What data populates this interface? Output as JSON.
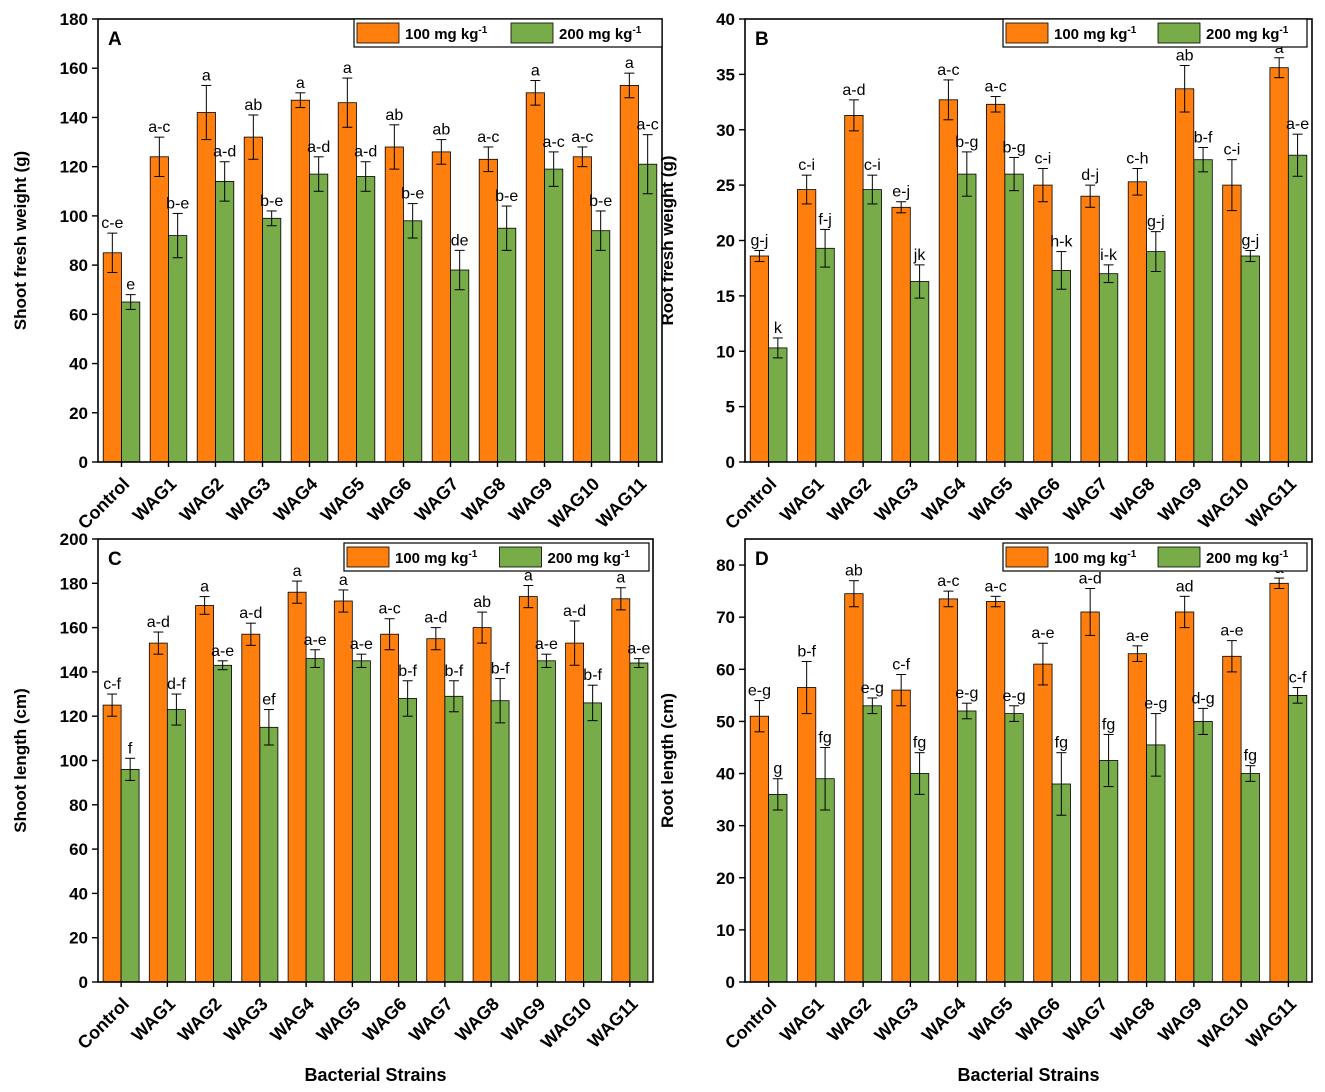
{
  "colors": {
    "series1": "#ff7f0e",
    "series2": "#77ac48",
    "axis": "#000000"
  },
  "xlabel": "Bacterial Strains",
  "legend": {
    "series1": {
      "main": "100 mg kg",
      "sup": "-1"
    },
    "series2": {
      "main": "200 mg kg",
      "sup": "-1"
    }
  },
  "chart_data": [
    {
      "type": "bar",
      "panel": "A",
      "title": "",
      "xlabel": "",
      "ylabel": "Shoot fresh weight (g)",
      "ylim": [
        0,
        180
      ],
      "yticks": [
        0,
        20,
        40,
        60,
        80,
        100,
        120,
        140,
        160,
        180
      ],
      "legend_position": "top-right",
      "categories": [
        "Control",
        "WAG1",
        "WAG2",
        "WAG3",
        "WAG4",
        "WAG5",
        "WAG6",
        "WAG7",
        "WAG8",
        "WAG9",
        "WAG10",
        "WAG11"
      ],
      "series": [
        {
          "name": "100 mg kg-1",
          "values": [
            85,
            124,
            142,
            132,
            147,
            146,
            128,
            126,
            123,
            150,
            124,
            153
          ],
          "errors": [
            8,
            8,
            11,
            9,
            3,
            10,
            9,
            5,
            5,
            5,
            4,
            5
          ],
          "labels": [
            "c-e",
            "a-c",
            "a",
            "ab",
            "a",
            "a",
            "ab",
            "ab",
            "a-c",
            "a",
            "a-c",
            "a"
          ]
        },
        {
          "name": "200 mg kg-1",
          "values": [
            65,
            92,
            114,
            99,
            117,
            116,
            98,
            78,
            95,
            119,
            94,
            121
          ],
          "errors": [
            3,
            9,
            8,
            3,
            7,
            6,
            7,
            8,
            9,
            7,
            8,
            12
          ],
          "labels": [
            "e",
            "b-e",
            "a-d",
            "b-e",
            "a-d",
            "a-d",
            "b-e",
            "de",
            "b-e",
            "a-c",
            "b-e",
            "a-c"
          ]
        }
      ]
    },
    {
      "type": "bar",
      "panel": "B",
      "title": "",
      "xlabel": "",
      "ylabel": "Root fresh weight (g)",
      "ylim": [
        0,
        40
      ],
      "yticks": [
        0,
        5,
        10,
        15,
        20,
        25,
        30,
        35,
        40
      ],
      "legend_position": "top-right",
      "categories": [
        "Control",
        "WAG1",
        "WAG2",
        "WAG3",
        "WAG4",
        "WAG5",
        "WAG6",
        "WAG7",
        "WAG8",
        "WAG9",
        "WAG10",
        "WAG11"
      ],
      "series": [
        {
          "name": "100 mg kg-1",
          "values": [
            18.6,
            24.6,
            31.3,
            23.0,
            32.7,
            32.3,
            25.0,
            24.0,
            25.3,
            33.7,
            25.0,
            35.6
          ],
          "errors": [
            0.5,
            1.3,
            1.4,
            0.5,
            1.8,
            0.7,
            1.5,
            1.0,
            1.2,
            2.1,
            2.3,
            0.9
          ],
          "labels": [
            "g-j",
            "c-i",
            "a-d",
            "e-j",
            "a-c",
            "a-c",
            "c-i",
            "d-j",
            "c-h",
            "ab",
            "c-i",
            "a"
          ]
        },
        {
          "name": "200 mg kg-1",
          "values": [
            10.3,
            19.3,
            24.6,
            16.3,
            26.0,
            26.0,
            17.3,
            17.0,
            19.0,
            27.3,
            18.6,
            27.7
          ],
          "errors": [
            0.9,
            1.7,
            1.3,
            1.5,
            2.0,
            1.5,
            1.7,
            0.8,
            1.8,
            1.1,
            0.5,
            1.9
          ],
          "labels": [
            "k",
            "f-j",
            "c-i",
            "jk",
            "b-g",
            "b-g",
            "h-k",
            "i-k",
            "g-j",
            "b-f",
            "g-j",
            "a-e"
          ]
        }
      ]
    },
    {
      "type": "bar",
      "panel": "C",
      "title": "",
      "xlabel": "Bacterial Strains",
      "ylabel": "Shoot length (cm)",
      "ylim": [
        0,
        200
      ],
      "yticks": [
        0,
        20,
        40,
        60,
        80,
        100,
        120,
        140,
        160,
        180,
        200
      ],
      "legend_position": "top-right",
      "categories": [
        "Control",
        "WAG1",
        "WAG2",
        "WAG3",
        "WAG4",
        "WAG5",
        "WAG6",
        "WAG7",
        "WAG8",
        "WAG9",
        "WAG10",
        "WAG11"
      ],
      "series": [
        {
          "name": "100 mg kg-1",
          "values": [
            125,
            153,
            170,
            157,
            176,
            172,
            157,
            155,
            160,
            174,
            153,
            173
          ],
          "errors": [
            5,
            5,
            4,
            5,
            5,
            5,
            7,
            5,
            7,
            5,
            10,
            5
          ],
          "labels": [
            "c-f",
            "a-d",
            "a",
            "a-d",
            "a",
            "a",
            "a-c",
            "a-d",
            "ab",
            "a",
            "a-d",
            "a"
          ]
        },
        {
          "name": "200 mg kg-1",
          "values": [
            96,
            123,
            143,
            115,
            146,
            145,
            128,
            129,
            127,
            145,
            126,
            144
          ],
          "errors": [
            5,
            7,
            2,
            8,
            4,
            3,
            8,
            7,
            10,
            3,
            8,
            2
          ],
          "labels": [
            "f",
            "d-f",
            "a-e",
            "ef",
            "a-e",
            "a-e",
            "b-f",
            "b-f",
            "b-f",
            "a-e",
            "b-f",
            "a-e"
          ]
        }
      ]
    },
    {
      "type": "bar",
      "panel": "D",
      "title": "",
      "xlabel": "Bacterial Strains",
      "ylabel": "Root length (cm)",
      "ylim": [
        0,
        85
      ],
      "yticks": [
        0,
        10,
        20,
        30,
        40,
        50,
        60,
        70,
        80
      ],
      "legend_position": "top-right",
      "categories": [
        "Control",
        "WAG1",
        "WAG2",
        "WAG3",
        "WAG4",
        "WAG5",
        "WAG6",
        "WAG7",
        "WAG8",
        "WAG9",
        "WAG10",
        "WAG11"
      ],
      "series": [
        {
          "name": "100 mg kg-1",
          "values": [
            51,
            56.5,
            74.5,
            56,
            73.5,
            73,
            61,
            71,
            63,
            71,
            62.5,
            76.5
          ],
          "errors": [
            3,
            5,
            2.5,
            3,
            1.5,
            1,
            4,
            4.5,
            1.5,
            3,
            3,
            1
          ],
          "labels": [
            "e-g",
            "b-f",
            "ab",
            "c-f",
            "a-c",
            "a-c",
            "a-e",
            "a-d",
            "a-e",
            "ad",
            "a-e",
            "a"
          ]
        },
        {
          "name": "200 mg kg-1",
          "values": [
            36,
            39,
            53,
            40,
            52,
            51.5,
            38,
            42.5,
            45.5,
            50,
            40,
            55
          ],
          "errors": [
            3,
            6,
            1.5,
            4,
            1.5,
            1.5,
            6,
            5,
            6,
            2.5,
            1.5,
            1.5
          ],
          "labels": [
            "g",
            "fg",
            "e-g",
            "fg",
            "e-g",
            "e-g",
            "fg",
            "fg",
            "e-g",
            "d-g",
            "fg",
            "c-f"
          ]
        }
      ]
    }
  ]
}
